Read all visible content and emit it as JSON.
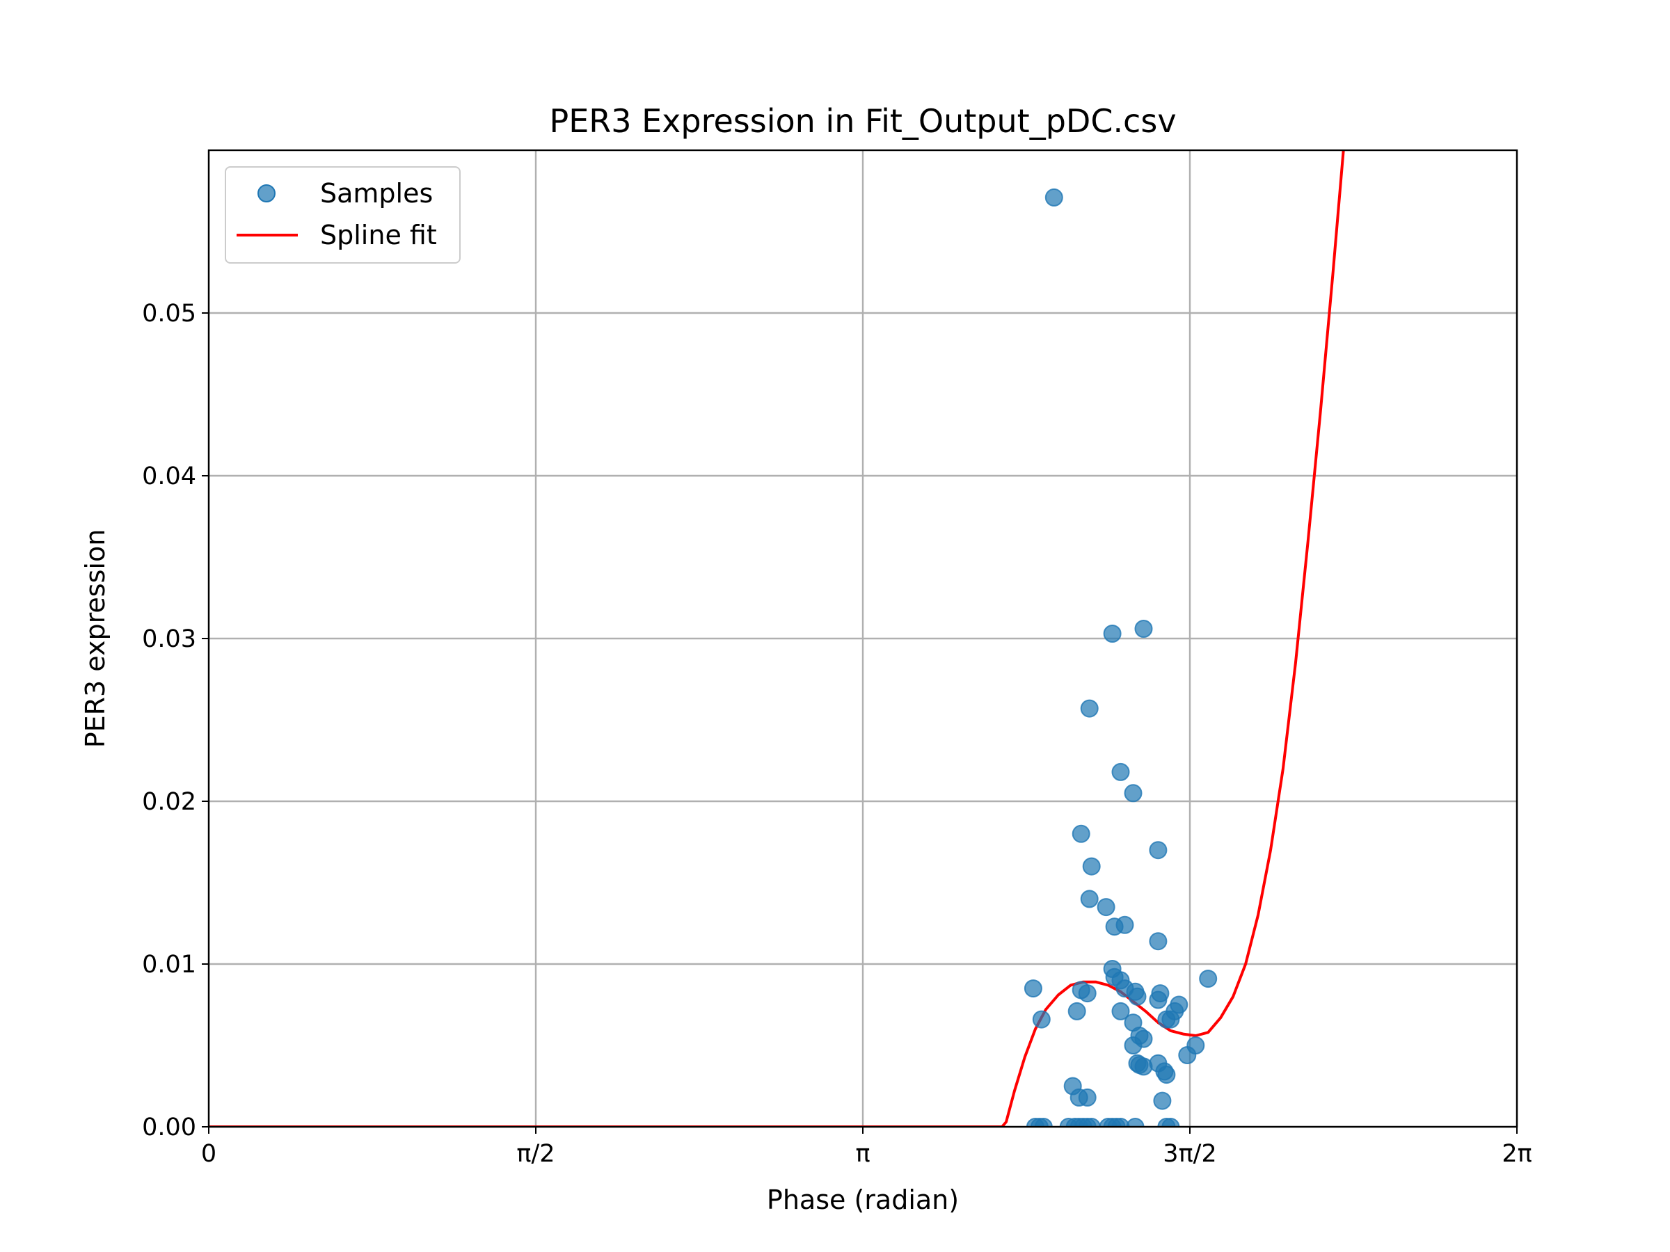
{
  "chart_data": {
    "type": "scatter",
    "title": "PER3 Expression in Fit_Output_pDC.csv",
    "xlabel": "Phase (radian)",
    "ylabel": "PER3 expression",
    "xlim": [
      0,
      6.2832
    ],
    "ylim": [
      0,
      0.06
    ],
    "grid": true,
    "legend_position": "upper-left",
    "x_ticks": [
      {
        "value": 0,
        "label": "0"
      },
      {
        "value": 1.5708,
        "label": "π/2"
      },
      {
        "value": 3.1416,
        "label": "π"
      },
      {
        "value": 4.7124,
        "label": "3π/2"
      },
      {
        "value": 6.2832,
        "label": "2π"
      }
    ],
    "y_ticks": [
      {
        "value": 0.0,
        "label": "0.00"
      },
      {
        "value": 0.01,
        "label": "0.01"
      },
      {
        "value": 0.02,
        "label": "0.02"
      },
      {
        "value": 0.03,
        "label": "0.03"
      },
      {
        "value": 0.04,
        "label": "0.04"
      },
      {
        "value": 0.05,
        "label": "0.05"
      }
    ],
    "series": [
      {
        "name": "Samples",
        "kind": "scatter",
        "color": "#1f77b4",
        "points": [
          [
            4.06,
            0.0571
          ],
          [
            4.49,
            0.0306
          ],
          [
            4.34,
            0.0303
          ],
          [
            4.23,
            0.0257
          ],
          [
            4.38,
            0.0218
          ],
          [
            4.44,
            0.0205
          ],
          [
            4.19,
            0.018
          ],
          [
            4.56,
            0.017
          ],
          [
            4.24,
            0.016
          ],
          [
            4.23,
            0.014
          ],
          [
            4.31,
            0.0135
          ],
          [
            4.35,
            0.0123
          ],
          [
            4.4,
            0.0124
          ],
          [
            4.56,
            0.0114
          ],
          [
            4.34,
            0.0097
          ],
          [
            4.38,
            0.009
          ],
          [
            4.35,
            0.0092
          ],
          [
            4.4,
            0.0085
          ],
          [
            4.45,
            0.0083
          ],
          [
            4.57,
            0.0082
          ],
          [
            4.22,
            0.0082
          ],
          [
            4.19,
            0.0084
          ],
          [
            4.46,
            0.008
          ],
          [
            4.56,
            0.0078
          ],
          [
            4.38,
            0.0071
          ],
          [
            4.17,
            0.0071
          ],
          [
            3.96,
            0.0085
          ],
          [
            4.0,
            0.0066
          ],
          [
            4.6,
            0.0066
          ],
          [
            4.62,
            0.0066
          ],
          [
            4.64,
            0.0071
          ],
          [
            4.66,
            0.0075
          ],
          [
            4.8,
            0.0091
          ],
          [
            4.74,
            0.005
          ],
          [
            4.44,
            0.0064
          ],
          [
            4.47,
            0.0056
          ],
          [
            4.49,
            0.0054
          ],
          [
            4.44,
            0.005
          ],
          [
            4.7,
            0.0044
          ],
          [
            4.46,
            0.0039
          ],
          [
            4.47,
            0.0038
          ],
          [
            4.49,
            0.0037
          ],
          [
            4.56,
            0.0039
          ],
          [
            4.59,
            0.0034
          ],
          [
            4.6,
            0.0032
          ],
          [
            4.15,
            0.0025
          ],
          [
            4.18,
            0.0018
          ],
          [
            4.22,
            0.0018
          ],
          [
            4.58,
            0.0016
          ],
          [
            3.97,
            0.0
          ],
          [
            3.99,
            0.0
          ],
          [
            4.01,
            0.0
          ],
          [
            4.13,
            0.0
          ],
          [
            4.16,
            0.0
          ],
          [
            4.18,
            0.0
          ],
          [
            4.2,
            0.0
          ],
          [
            4.22,
            0.0
          ],
          [
            4.24,
            0.0
          ],
          [
            4.32,
            0.0
          ],
          [
            4.34,
            0.0
          ],
          [
            4.36,
            0.0
          ],
          [
            4.38,
            0.0
          ],
          [
            4.45,
            0.0
          ],
          [
            4.6,
            0.0
          ],
          [
            4.62,
            0.0
          ]
        ]
      },
      {
        "name": "Spline fit",
        "kind": "line",
        "color": "#ff0000",
        "points": [
          [
            0.0,
            0.0
          ],
          [
            3.81,
            0.0
          ],
          [
            3.83,
            0.0003
          ],
          [
            3.87,
            0.0022
          ],
          [
            3.92,
            0.0043
          ],
          [
            3.97,
            0.006
          ],
          [
            4.02,
            0.0072
          ],
          [
            4.08,
            0.0081
          ],
          [
            4.14,
            0.0087
          ],
          [
            4.2,
            0.0089
          ],
          [
            4.26,
            0.0089
          ],
          [
            4.32,
            0.0087
          ],
          [
            4.38,
            0.0083
          ],
          [
            4.44,
            0.0077
          ],
          [
            4.5,
            0.0071
          ],
          [
            4.56,
            0.0064
          ],
          [
            4.62,
            0.0059
          ],
          [
            4.68,
            0.0057
          ],
          [
            4.74,
            0.0056
          ],
          [
            4.8,
            0.0058
          ],
          [
            4.86,
            0.0067
          ],
          [
            4.92,
            0.008
          ],
          [
            4.98,
            0.01
          ],
          [
            5.04,
            0.013
          ],
          [
            5.1,
            0.017
          ],
          [
            5.16,
            0.022
          ],
          [
            5.22,
            0.0285
          ],
          [
            5.28,
            0.036
          ],
          [
            5.34,
            0.044
          ],
          [
            5.4,
            0.0525
          ],
          [
            5.45,
            0.06
          ]
        ]
      }
    ]
  }
}
